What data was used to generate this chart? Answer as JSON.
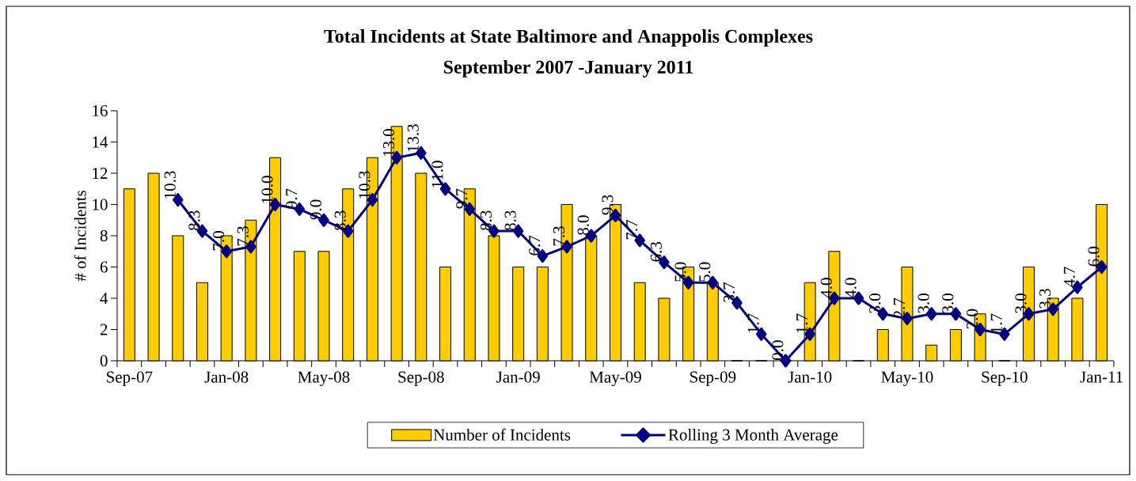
{
  "chart_data": {
    "type": "bar",
    "title": "Total Incidents at State Baltimore and Anappolis Complexes",
    "subtitle": "September 2007 -January 2011",
    "ylabel": "# of Incidents",
    "categories": [
      "Sep-07",
      null,
      null,
      null,
      "Jan-08",
      null,
      null,
      null,
      "May-08",
      null,
      null,
      null,
      "Sep-08",
      null,
      null,
      null,
      "Jan-09",
      null,
      null,
      null,
      "May-09",
      null,
      null,
      null,
      "Sep-09",
      null,
      null,
      null,
      "Jan-10",
      null,
      null,
      null,
      "May-10",
      null,
      null,
      null,
      "Sep-10",
      null,
      null,
      null,
      "Jan-11"
    ],
    "series": [
      {
        "name": "Number of Incidents",
        "color": "#ffcc00",
        "values": [
          11,
          12,
          8,
          5,
          8,
          9,
          13,
          7,
          7,
          11,
          13,
          15,
          12,
          6,
          11,
          8,
          6,
          6,
          10,
          8,
          10,
          5,
          4,
          6,
          5,
          0,
          0,
          0,
          5,
          7,
          0,
          2,
          6,
          1,
          2,
          3,
          0,
          6,
          4,
          4,
          10
        ]
      },
      {
        "name": "Rolling 3 Month Average",
        "type": "line",
        "color": "#000080",
        "marker": "diamond",
        "line_style": "solid",
        "values": [
          null,
          null,
          10.3,
          8.3,
          7.0,
          7.3,
          10.0,
          9.7,
          9.0,
          8.3,
          10.3,
          13.0,
          13.3,
          11.0,
          9.7,
          8.3,
          8.3,
          6.7,
          7.3,
          8.0,
          9.3,
          7.7,
          6.3,
          5.0,
          5.0,
          3.7,
          1.7,
          0.0,
          1.7,
          4.0,
          4.0,
          3.0,
          2.7,
          3.0,
          3.0,
          2.0,
          1.7,
          3.0,
          3.3,
          4.7,
          6.0
        ],
        "value_labels": [
          null,
          null,
          "10.3",
          "8.3",
          "7.0",
          "7.3",
          "10.0",
          "9.7",
          "9.0",
          "8.3",
          "10.3",
          "13.0",
          "13.3",
          "11.0",
          "9.7",
          "8.3",
          "8.3",
          "6.7",
          "7.3",
          "8.0",
          "9.3",
          "7.7",
          "6.3",
          "5.0",
          "5.0",
          "3.7",
          "1.7",
          "0.0",
          "1.7",
          "4.0",
          "4.0",
          "3.0",
          "2.7",
          "3.0",
          "3.0",
          "2.0",
          "1.7",
          "3.0",
          "3.3",
          "4.7",
          "6.0"
        ]
      }
    ],
    "ylim": [
      0,
      16
    ],
    "yticks": [
      0,
      2,
      4,
      6,
      8,
      10,
      12,
      14,
      16
    ],
    "grid": false,
    "legend": "bottom"
  }
}
